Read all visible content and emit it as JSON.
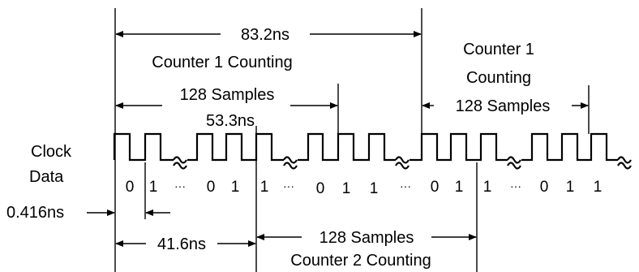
{
  "colors": {
    "line": "#000000",
    "background": "#ffffff"
  },
  "labels": {
    "period_top": "83.2ns",
    "counter1_left": "Counter 1 Counting",
    "counter1_right_line1": "Counter 1",
    "counter1_right_line2": "Counting",
    "samples_left": "128 Samples",
    "samples_left_time": "53.3ns",
    "samples_right": "128 Samples",
    "clock": "Clock",
    "data": "Data",
    "bit_time": "0.416ns",
    "period_bottom": "41.6ns",
    "samples_bottom": "128 Samples",
    "counter2": "Counter 2 Counting"
  },
  "data_row": [
    "0",
    "1",
    "···",
    "0",
    "1",
    "1",
    "···",
    "0",
    "1",
    "1",
    "···",
    "0",
    "1",
    "1",
    "···",
    "0",
    "1",
    "1"
  ],
  "icons": {
    "break": "squiggle-break-icon"
  }
}
